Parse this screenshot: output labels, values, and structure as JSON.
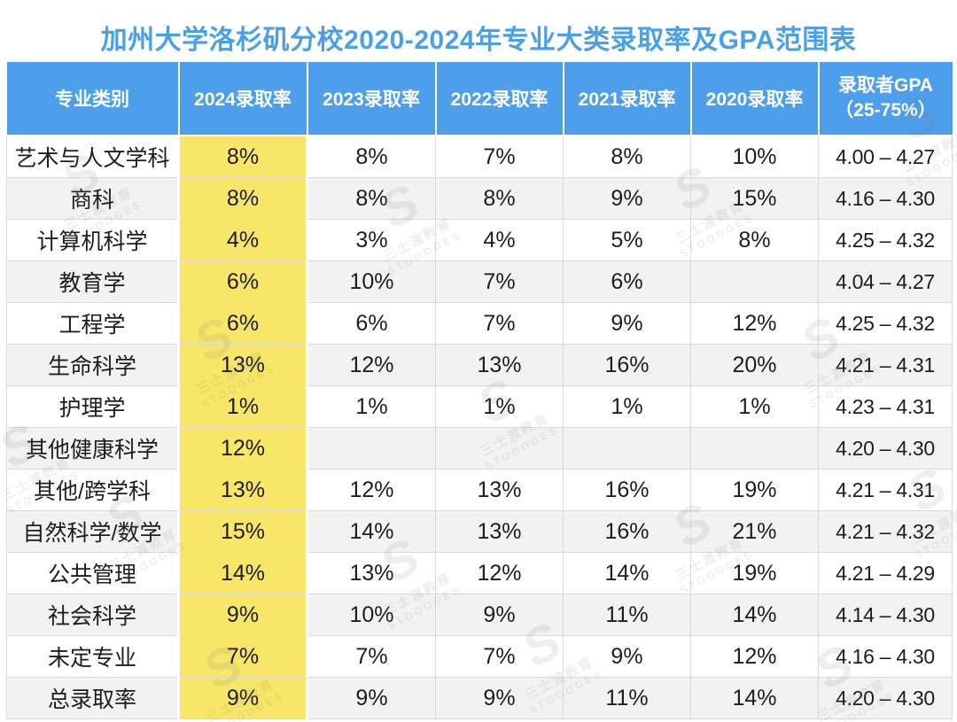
{
  "title": "加州大学洛杉矶分校2020-2024年专业大类录取率及GPA范围表",
  "gpa_header": {
    "line1": "录取者GPA",
    "line2": "（25-75%）"
  },
  "watermark": {
    "logo": "S",
    "text_cn": "三士渡教育",
    "text_en": "STOOOGES"
  },
  "colors": {
    "header_blue": "#4d9feb",
    "title_blue": "#4a9fe9",
    "highlight_yellow": "#f8e669",
    "stripe_gray": "#f2f2f2",
    "grid_line": "#d9d9d9"
  },
  "chart_data": {
    "type": "table",
    "title": "加州大学洛杉矶分校2020-2024年专业大类录取率及GPA范围表",
    "columns": [
      "专业类别",
      "2024录取率",
      "2023录取率",
      "2022录取率",
      "2021录取率",
      "2020录取率",
      "录取者GPA（25-75%）"
    ],
    "rows": [
      [
        "艺术与人文学科",
        "8%",
        "8%",
        "7%",
        "8%",
        "10%",
        "4.00 – 4.27"
      ],
      [
        "商科",
        "8%",
        "8%",
        "8%",
        "9%",
        "15%",
        "4.16 – 4.30"
      ],
      [
        "计算机科学",
        "4%",
        "3%",
        "4%",
        "5%",
        "8%",
        "4.25 – 4.32"
      ],
      [
        "教育学",
        "6%",
        "10%",
        "7%",
        "6%",
        "",
        "4.04 – 4.27"
      ],
      [
        "工程学",
        "6%",
        "6%",
        "7%",
        "9%",
        "12%",
        "4.25 – 4.32"
      ],
      [
        "生命科学",
        "13%",
        "12%",
        "13%",
        "16%",
        "20%",
        "4.21 – 4.31"
      ],
      [
        "护理学",
        "1%",
        "1%",
        "1%",
        "1%",
        "1%",
        "4.23 – 4.31"
      ],
      [
        "其他健康科学",
        "12%",
        "",
        "",
        "",
        "",
        "4.20 – 4.30"
      ],
      [
        "其他/跨学科",
        "13%",
        "12%",
        "13%",
        "16%",
        "19%",
        "4.21 – 4.31"
      ],
      [
        "自然科学/数学",
        "15%",
        "14%",
        "13%",
        "16%",
        "21%",
        "4.21 – 4.32"
      ],
      [
        "公共管理",
        "14%",
        "13%",
        "12%",
        "14%",
        "19%",
        "4.21 – 4.29"
      ],
      [
        "社会科学",
        "9%",
        "10%",
        "9%",
        "11%",
        "14%",
        "4.14 – 4.30"
      ],
      [
        "未定专业",
        "7%",
        "7%",
        "7%",
        "9%",
        "12%",
        "4.16 – 4.30"
      ],
      [
        "总录取率",
        "9%",
        "9%",
        "9%",
        "11%",
        "14%",
        "4.20 – 4.30"
      ]
    ]
  }
}
